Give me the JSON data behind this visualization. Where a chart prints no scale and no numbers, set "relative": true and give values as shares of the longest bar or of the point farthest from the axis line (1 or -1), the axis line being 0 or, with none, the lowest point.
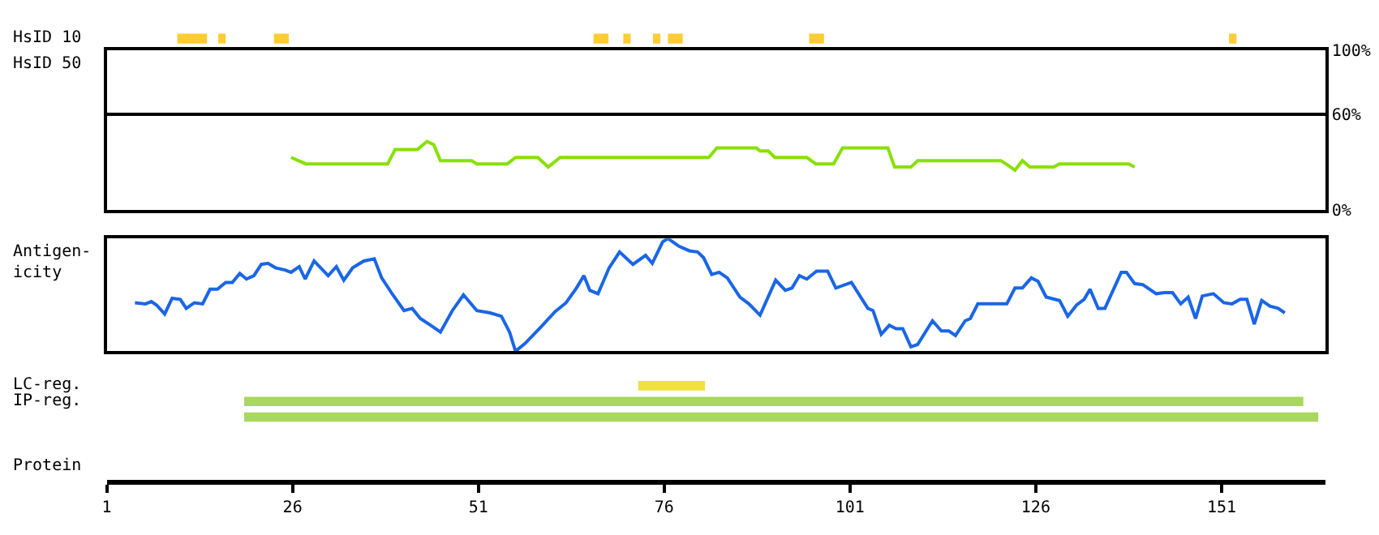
{
  "chart_data": [
    {
      "type": "bar",
      "orientation": "horizontal",
      "categories": [
        "HsID 10"
      ],
      "xlim": [
        1,
        165
      ],
      "tick_labels": false,
      "series": [
        {
          "color": "#ffcc33",
          "values": [
            4
          ],
          "base": [
            10.5
          ]
        },
        {
          "color": "#ffcc33",
          "values": [
            1
          ],
          "base": [
            16
          ]
        },
        {
          "color": "#ffcc33",
          "values": [
            2
          ],
          "base": [
            23.5
          ]
        },
        {
          "color": "#ffcc33",
          "values": [
            2
          ],
          "base": [
            66.5
          ]
        },
        {
          "color": "#ffcc33",
          "values": [
            1
          ],
          "base": [
            70.5
          ]
        },
        {
          "color": "#ffcc33",
          "values": [
            1
          ],
          "base": [
            74.5
          ]
        },
        {
          "color": "#ffcc33",
          "values": [
            2
          ],
          "base": [
            76.5
          ]
        },
        {
          "color": "#ffcc33",
          "values": [
            2
          ],
          "base": [
            95.5
          ]
        },
        {
          "color": "#ffcc33",
          "values": [
            1
          ],
          "base": [
            152
          ]
        }
      ]
    },
    {
      "type": "line",
      "ylabel": "HsID 50",
      "xlim": [
        1,
        165
      ],
      "ylim": [
        0,
        100
      ],
      "yticks": [
        {
          "value": 0,
          "label": "0%"
        },
        {
          "value": 60,
          "label": "60%"
        },
        {
          "value": 100,
          "label": "100%"
        }
      ],
      "grid": "y",
      "tick_labels": "y",
      "x": [
        25.8,
        27.8,
        38.8,
        39.8,
        42.8,
        44.1,
        45,
        45.9,
        50.1,
        50.8,
        54.9,
        56,
        59,
        60.4,
        62,
        82,
        83.1,
        88.4,
        88.9,
        90,
        90.9,
        95.2,
        96.4,
        98.8,
        100,
        106.1,
        107,
        109.2,
        110.1,
        121.3,
        122.3,
        123.2,
        124.2,
        125.2,
        128.4,
        129.2,
        138.5,
        139.3
      ],
      "series": [
        {
          "color": "#88e000",
          "values": [
            33,
            29,
            29,
            38,
            38,
            43,
            41,
            31,
            31,
            29,
            29,
            33,
            33,
            27,
            33,
            33,
            39,
            39,
            37,
            37,
            33,
            33,
            29,
            29,
            39,
            39,
            27,
            27,
            31,
            31,
            28,
            25,
            31,
            27,
            27,
            29,
            29,
            27
          ]
        }
      ]
    },
    {
      "type": "line",
      "ylabel": "Antigen-\nicity",
      "xlim": [
        1,
        165
      ],
      "relative": true,
      "tick_labels": false,
      "x": [
        4.8,
        6.2,
        7.0,
        7.7,
        8.8,
        9.8,
        10.9,
        11.7,
        12.8,
        13.9,
        14.9,
        15.9,
        17.0,
        17.9,
        18.9,
        19.8,
        20.8,
        21.8,
        22.7,
        23.7,
        25.0,
        25.8,
        26.9,
        27.7,
        28.9,
        30.8,
        31.9,
        32.9,
        34.1,
        35.6,
        37.0,
        38.0,
        39.5,
        41.0,
        42.1,
        43.2,
        44.6,
        45.9,
        47.5,
        49.0,
        50.8,
        52.6,
        54.1,
        55.2,
        56.0,
        57.3,
        59.5,
        61.3,
        62.8,
        64.2,
        65.2,
        66.0,
        67.1,
        68.6,
        70.0,
        71.8,
        73.5,
        74.4,
        75.8,
        76.5,
        78.0,
        79.4,
        80.5,
        81.3,
        82.4,
        83.4,
        84.5,
        86.2,
        87.4,
        88.9,
        91.0,
        92.3,
        93.2,
        94.2,
        95.2,
        96.5,
        98.0,
        99.1,
        101.2,
        103.4,
        104.1,
        105.2,
        106.3,
        107.2,
        108.1,
        109.2,
        110.1,
        112.1,
        113.3,
        114.3,
        115.2,
        116.5,
        117.2,
        118.2,
        122.1,
        123.2,
        124.2,
        125.4,
        126.3,
        127.4,
        129.2,
        130.3,
        131.5,
        132.5,
        133.3,
        134.4,
        135.3,
        137.5,
        138.2,
        139.3,
        140.4,
        142.2,
        143.3,
        144.4,
        145.5,
        146.5,
        147.5,
        148.4,
        149.9,
        151.3,
        152.4,
        153.5,
        154.4,
        155.4,
        156.4,
        157.5,
        158.6,
        159.5
      ],
      "series": [
        {
          "color": "#1a66e6",
          "values": [
            0.43,
            0.42,
            0.44,
            0.41,
            0.33,
            0.47,
            0.46,
            0.38,
            0.43,
            0.42,
            0.55,
            0.55,
            0.61,
            0.61,
            0.69,
            0.64,
            0.67,
            0.77,
            0.78,
            0.74,
            0.72,
            0.7,
            0.75,
            0.64,
            0.8,
            0.67,
            0.75,
            0.63,
            0.74,
            0.8,
            0.82,
            0.65,
            0.5,
            0.36,
            0.38,
            0.29,
            0.23,
            0.17,
            0.36,
            0.5,
            0.36,
            0.34,
            0.31,
            0.17,
            0.0,
            0.07,
            0.22,
            0.35,
            0.43,
            0.56,
            0.67,
            0.54,
            0.51,
            0.74,
            0.88,
            0.77,
            0.85,
            0.78,
            0.97,
            1.0,
            0.93,
            0.89,
            0.88,
            0.83,
            0.68,
            0.7,
            0.65,
            0.48,
            0.42,
            0.32,
            0.63,
            0.54,
            0.56,
            0.67,
            0.64,
            0.71,
            0.71,
            0.56,
            0.61,
            0.38,
            0.36,
            0.15,
            0.23,
            0.2,
            0.2,
            0.04,
            0.06,
            0.27,
            0.18,
            0.18,
            0.14,
            0.27,
            0.29,
            0.42,
            0.42,
            0.56,
            0.56,
            0.65,
            0.62,
            0.48,
            0.45,
            0.31,
            0.41,
            0.46,
            0.55,
            0.38,
            0.38,
            0.7,
            0.7,
            0.6,
            0.59,
            0.51,
            0.52,
            0.52,
            0.42,
            0.48,
            0.29,
            0.49,
            0.51,
            0.43,
            0.42,
            0.46,
            0.46,
            0.24,
            0.45,
            0.4,
            0.38,
            0.34
          ]
        }
      ]
    },
    {
      "type": "bar",
      "orientation": "horizontal",
      "categories": [
        "LC-reg.",
        "IP-reg.",
        null
      ],
      "xlabel": "Protein",
      "xlim": [
        1,
        165
      ],
      "xticks": [
        1,
        26,
        51,
        76,
        101,
        126,
        151
      ],
      "tick_labels": "x",
      "series": [
        {
          "color": "#f0e040",
          "values": [
            9,
            null,
            null
          ],
          "base": [
            72.5,
            null,
            null
          ]
        },
        {
          "color": "#a8d860",
          "values": [
            null,
            142.5,
            144.5
          ],
          "base": [
            null,
            19.5,
            19.5
          ]
        }
      ]
    }
  ]
}
